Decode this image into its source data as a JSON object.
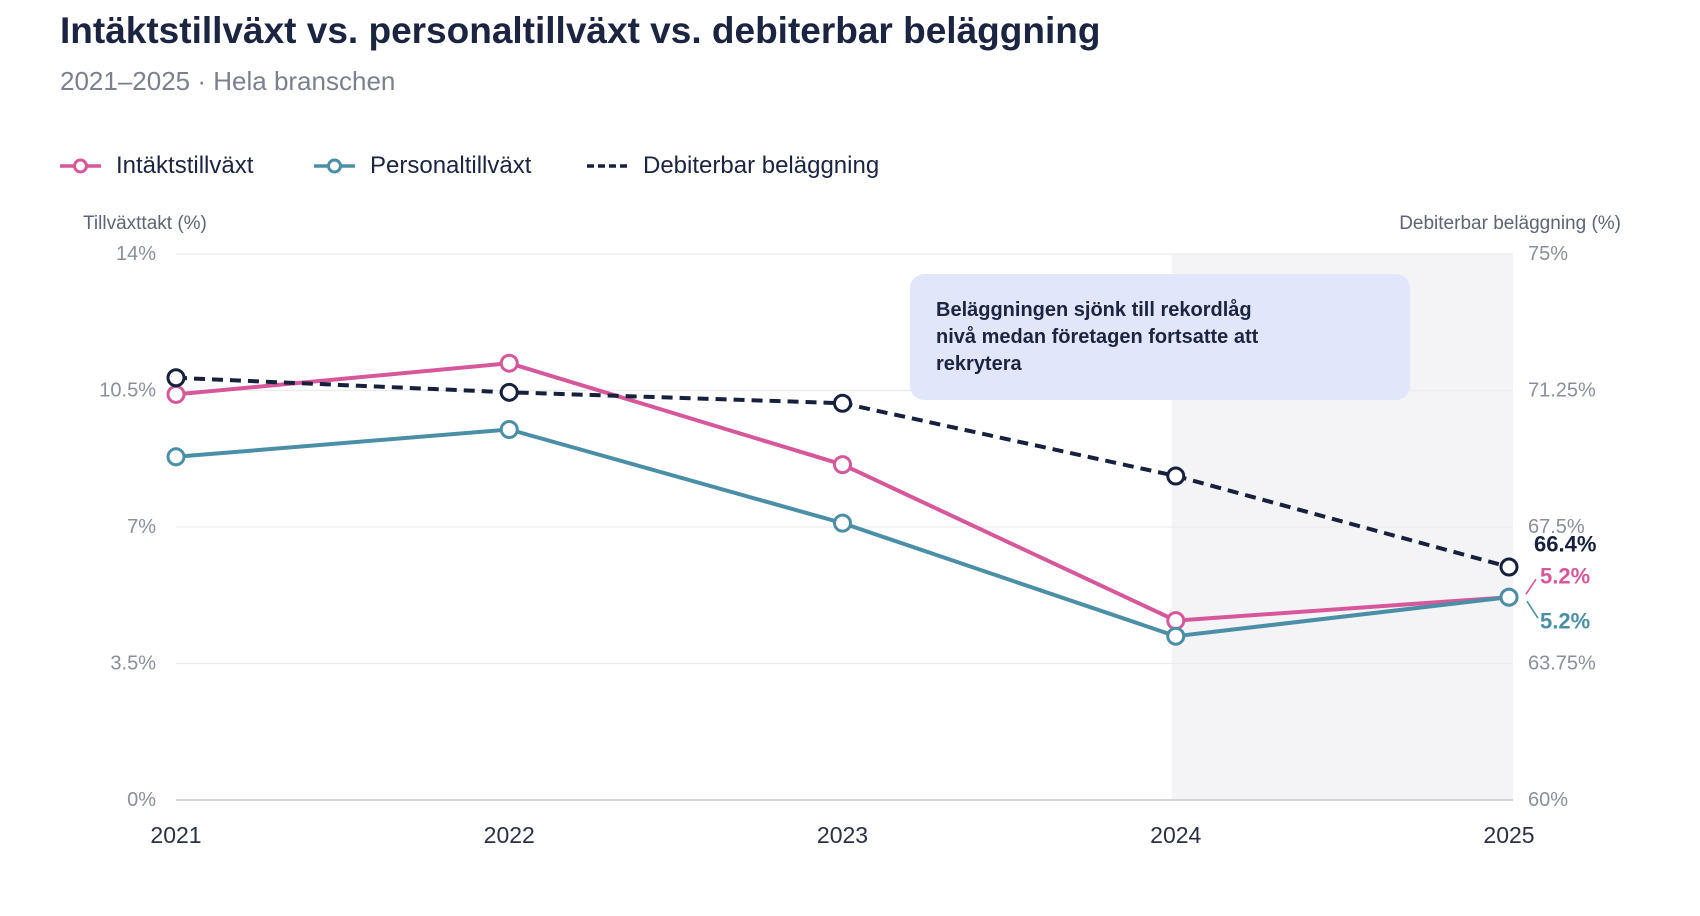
{
  "chart_data": {
    "type": "line",
    "title": "Intäktstillväxt vs. personaltillväxt vs. debiterbar beläggning",
    "subtitle": "2021–2025 · Hela branschen",
    "categories": [
      "2021",
      "2022",
      "2023",
      "2024",
      "2025"
    ],
    "y_left": {
      "label": "Tillväxttakt (%)",
      "range": [
        0,
        14
      ],
      "ticks": [
        0,
        3.5,
        7,
        10.5,
        14
      ],
      "tick_labels": [
        "0%",
        "3.5%",
        "7%",
        "10.5%",
        "14%"
      ]
    },
    "y_right": {
      "label": "Debiterbar beläggning (%)",
      "range": [
        60,
        75
      ],
      "ticks": [
        60,
        63.75,
        67.5,
        71.25,
        75
      ],
      "tick_labels": [
        "60%",
        "63.75%",
        "67.5%",
        "71.25%",
        "75%"
      ]
    },
    "series": [
      {
        "name": "Intäktstillväxt",
        "values": [
          10.4,
          11.2,
          8.6,
          4.6,
          5.2
        ],
        "right_axis": false,
        "dashed": false,
        "color": "#d6589b",
        "end_label": "5.2%"
      },
      {
        "name": "Personaltillväxt",
        "values": [
          8.8,
          9.5,
          7.1,
          4.2,
          5.2
        ],
        "right_axis": false,
        "dashed": false,
        "color": "#4b8fa6",
        "end_label": "5.2%"
      },
      {
        "name": "Debiterbar beläggning",
        "values": [
          71.6,
          71.2,
          70.9,
          68.9,
          66.4
        ],
        "right_axis": true,
        "dashed": true,
        "color": "#17213d",
        "end_label": "66.4%"
      }
    ],
    "highlight": {
      "from": 2024,
      "to": 2025,
      "color": "#f4f4f7"
    },
    "annotation": {
      "lines": [
        "Beläggningen sjönk till rekordlåg",
        "nivå medan företagen fortsatte att",
        "rekrytera"
      ],
      "background": "#e1e6fb"
    },
    "grid": true
  }
}
